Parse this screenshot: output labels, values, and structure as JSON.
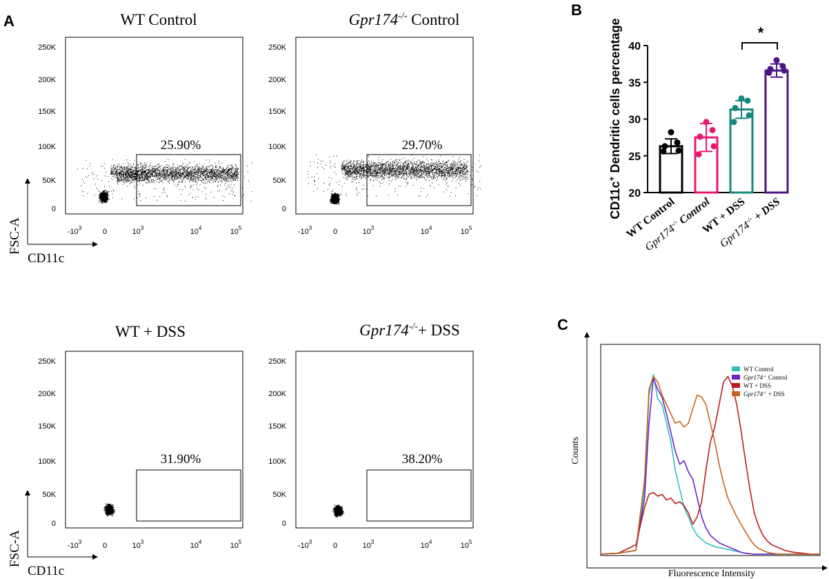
{
  "panel_labels": {
    "a": "A",
    "b": "B",
    "c": "C"
  },
  "ko_gene": "Gpr174",
  "ko_sup": "-/-",
  "axis_text": {
    "fsc": "FSC-A",
    "cd11c": "CD11c"
  },
  "flow_plots": [
    {
      "name_pre": "WT Control",
      "name_ko": "",
      "name_post": "",
      "gate_pct": "25.90%"
    },
    {
      "name_pre": "",
      "name_ko": "Gpr174",
      "name_post": " Control",
      "gate_pct": "29.70%"
    },
    {
      "name_pre": "WT + DSS",
      "name_ko": "",
      "name_post": "",
      "gate_pct": "31.90%"
    },
    {
      "name_pre": "",
      "name_ko": "Gpr174",
      "name_post": "+ DSS",
      "gate_pct": "38.20%"
    }
  ],
  "flow_y_ticks": [
    "250K",
    "200K",
    "150K",
    "100K",
    "50K",
    "0"
  ],
  "flow_x_ticks": [
    {
      "base": "-10",
      "exp": "3"
    },
    {
      "base": "0",
      "exp": ""
    },
    {
      "base": "10",
      "exp": "3"
    },
    {
      "base": "10",
      "exp": "4"
    },
    {
      "base": "10",
      "exp": "5"
    }
  ],
  "chart_data": [
    {
      "type": "bar",
      "panel": "B",
      "ylabel": "CD11c+ Dendritic cells percentage",
      "ylabel_main": "CD11c",
      "ylabel_sup": "+",
      "ylabel_rest": " Dendritic cells percentage",
      "ylim": [
        20,
        40
      ],
      "yticks": [
        "20",
        "25",
        "30",
        "35",
        "40"
      ],
      "categories": [
        "WT Control",
        "Gpr174-/- Control",
        "WT + DSS",
        "Gpr174-/- + DSS"
      ],
      "cat_labels": [
        {
          "pre": "WT Control",
          "ko": "",
          "sup": "",
          "post": "",
          "italic": false
        },
        {
          "pre": "",
          "ko": "Gpr174",
          "sup": "-/-",
          "post": " Control",
          "italic": true
        },
        {
          "pre": "WT + DSS",
          "ko": "",
          "sup": "",
          "post": "",
          "italic": false
        },
        {
          "pre": "",
          "ko": "Gpr174",
          "sup": "-/-",
          "post": " + DSS",
          "italic": true
        }
      ],
      "values": [
        26.3,
        27.5,
        31.3,
        36.6
      ],
      "errors": [
        1.0,
        1.9,
        1.2,
        0.9
      ],
      "points": [
        [
          28.2,
          26.8,
          26.3,
          25.7,
          25.6
        ],
        [
          29.6,
          28.5,
          27.6,
          26.3,
          25.2
        ],
        [
          32.8,
          32.5,
          31.5,
          30.5,
          29.6
        ],
        [
          38.0,
          37.2,
          36.8,
          36.6,
          36.3
        ]
      ],
      "colors": [
        "#000000",
        "#e8186f",
        "#17877c",
        "#4b1487"
      ],
      "significance": "*"
    },
    {
      "type": "line",
      "panel": "C",
      "title": "",
      "xlabel": "Fluorescence Intensity",
      "ylabel": "Counts",
      "xlim": [
        0,
        100
      ],
      "ylim": [
        0,
        100
      ],
      "legend_position": "top-right",
      "legend": [
        {
          "pre": "WT Control",
          "ko": "",
          "sup": "",
          "post": ""
        },
        {
          "pre": "",
          "ko": "Gpr174",
          "sup": "-/-",
          "post": " Control"
        },
        {
          "pre": "WT + DSS",
          "ko": "",
          "sup": "",
          "post": ""
        },
        {
          "pre": "",
          "ko": "Gpr174",
          "sup": "-/-",
          "post": " + DSS"
        }
      ],
      "x": [
        0,
        8,
        16,
        20,
        22,
        24,
        26,
        28,
        30,
        32,
        34,
        36,
        38,
        40,
        42,
        44,
        46,
        48,
        50,
        52,
        54,
        56,
        58,
        60,
        62,
        64,
        66,
        68,
        70,
        72,
        74,
        76,
        78,
        80,
        84,
        88,
        92,
        96,
        100
      ],
      "series": [
        {
          "name": "WT Control",
          "color": "#2ebdbd",
          "values": [
            0,
            0.5,
            2,
            35,
            85,
            96,
            83,
            80,
            70,
            60,
            45,
            35,
            25,
            20,
            14,
            10,
            8,
            6,
            5,
            4,
            3.5,
            3,
            2.5,
            2,
            1.5,
            1,
            0.5,
            0.2,
            0,
            0,
            0,
            0,
            0,
            0,
            0,
            0,
            0,
            0,
            0
          ]
        },
        {
          "name": "Gpr174-/- Control",
          "color": "#6b22c7",
          "values": [
            0,
            0.5,
            2,
            30,
            70,
            94,
            88,
            84,
            75,
            65,
            55,
            48,
            50,
            44,
            40,
            30,
            20,
            14,
            10,
            8,
            6,
            5,
            4,
            3,
            2,
            1,
            0.5,
            0.2,
            0,
            0,
            0,
            0,
            0,
            0,
            0,
            0,
            0,
            0,
            0
          ]
        },
        {
          "name": "WT + DSS",
          "color": "#b71c1c",
          "values": [
            0,
            0.5,
            5,
            25,
            32,
            33,
            31,
            32,
            29,
            30,
            27,
            28,
            26,
            22,
            16,
            20,
            28,
            45,
            60,
            68,
            80,
            92,
            95,
            90,
            80,
            66,
            50,
            35,
            22,
            15,
            10,
            7,
            5,
            4,
            2,
            1,
            0.5,
            0,
            0
          ]
        },
        {
          "name": "Gpr174-/- + DSS",
          "color": "#c4631a",
          "values": [
            0,
            0.5,
            2,
            40,
            88,
            95,
            92,
            85,
            80,
            75,
            70,
            71,
            68,
            70,
            78,
            85,
            84,
            80,
            70,
            60,
            48,
            38,
            30,
            25,
            20,
            16,
            12,
            8,
            5,
            3,
            2,
            1,
            0.5,
            0.2,
            0,
            0,
            0,
            0,
            0
          ]
        }
      ]
    }
  ]
}
